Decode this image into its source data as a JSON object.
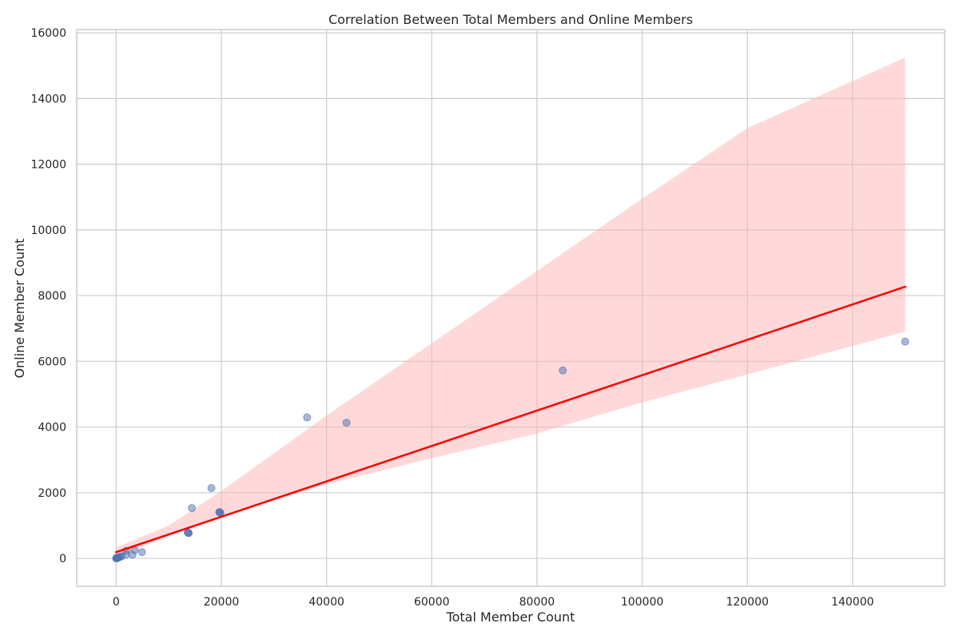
{
  "chart_data": {
    "type": "scatter",
    "title": "Correlation Between Total Members and Online Members",
    "xlabel": "Total Member Count",
    "ylabel": "Online Member Count",
    "xlim": [
      -7500,
      157500
    ],
    "ylim": [
      -850,
      16100
    ],
    "x_ticks": [
      0,
      20000,
      40000,
      60000,
      80000,
      100000,
      120000,
      140000
    ],
    "y_ticks": [
      0,
      2000,
      4000,
      6000,
      8000,
      10000,
      12000,
      14000,
      16000
    ],
    "grid": true,
    "points": [
      {
        "x": 0,
        "y": 0
      },
      {
        "x": 50,
        "y": 5
      },
      {
        "x": 100,
        "y": 10
      },
      {
        "x": 150,
        "y": 8
      },
      {
        "x": 200,
        "y": 15
      },
      {
        "x": 300,
        "y": 20
      },
      {
        "x": 500,
        "y": 30
      },
      {
        "x": 800,
        "y": 50
      },
      {
        "x": 1000,
        "y": 60
      },
      {
        "x": 1900,
        "y": 115
      },
      {
        "x": 1900,
        "y": 230
      },
      {
        "x": 3100,
        "y": 110
      },
      {
        "x": 3500,
        "y": 250
      },
      {
        "x": 4900,
        "y": 190
      },
      {
        "x": 13600,
        "y": 790
      },
      {
        "x": 13700,
        "y": 780
      },
      {
        "x": 13800,
        "y": 770
      },
      {
        "x": 14400,
        "y": 1530
      },
      {
        "x": 18100,
        "y": 2140
      },
      {
        "x": 19600,
        "y": 1410
      },
      {
        "x": 19700,
        "y": 1400
      },
      {
        "x": 19800,
        "y": 1390
      },
      {
        "x": 36300,
        "y": 4290
      },
      {
        "x": 43800,
        "y": 4130
      },
      {
        "x": 84900,
        "y": 5720
      },
      {
        "x": 150000,
        "y": 6600
      }
    ],
    "regression_line": {
      "x": [
        0,
        150000
      ],
      "y": [
        190,
        8270
      ]
    },
    "confidence_band": {
      "x": [
        0,
        10000,
        20000,
        40000,
        60000,
        80000,
        100000,
        120000,
        150000
      ],
      "upper": [
        330,
        1000,
        2050,
        4350,
        6550,
        8750,
        10950,
        13100,
        15250
      ],
      "lower": [
        50,
        680,
        1300,
        2250,
        3050,
        3800,
        4750,
        5600,
        6900
      ]
    },
    "colors": {
      "points": "#4c72b0",
      "regression_line": "#ff0000",
      "confidence_band": "#ffb3b3",
      "grid": "#cccccc",
      "axes_edge": "#cccccc"
    }
  }
}
